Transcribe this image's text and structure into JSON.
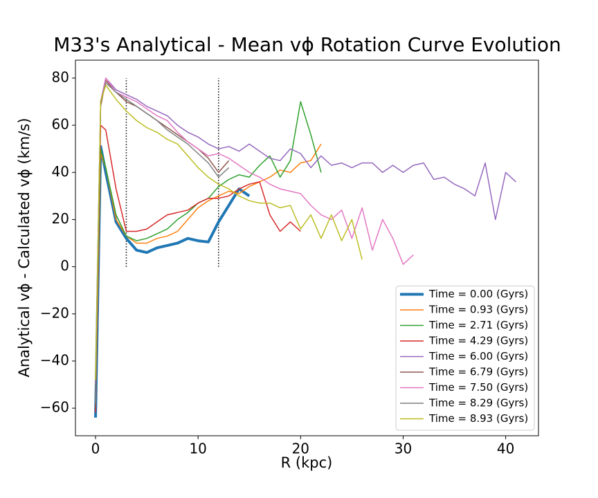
{
  "chart_data": {
    "type": "line",
    "title": "M33's Analytical - Mean vϕ Rotation Curve Evolution",
    "xlabel": "R (kpc)",
    "ylabel": "Analytical vϕ - Calculated vϕ (km/s)",
    "xlim": [
      -1.96,
      43.2
    ],
    "ylim": [
      -71.7,
      87.6
    ],
    "xticks": [
      0,
      10,
      20,
      30,
      40
    ],
    "yticks": [
      {
        "value": -60,
        "label": "−60"
      },
      {
        "value": -40,
        "label": "−40"
      },
      {
        "value": -20,
        "label": "−20"
      },
      0,
      20,
      40,
      60,
      80
    ],
    "legend": "lower right",
    "vlines": [
      {
        "x": 3,
        "ymin": 0,
        "ymax": 80
      },
      {
        "x": 12,
        "ymin": 0,
        "ymax": 80
      }
    ],
    "series": [
      {
        "name": "Time = 0.00 (Gyrs)",
        "color": "#1f77b4",
        "width": 4,
        "x": [
          0,
          0.5,
          1,
          2,
          3,
          4,
          5,
          6,
          7,
          8,
          9,
          10,
          11,
          12,
          13,
          14,
          15
        ],
        "values": [
          -64,
          51,
          40,
          19,
          12,
          7,
          6,
          8,
          9,
          10,
          12,
          11,
          10.5,
          19,
          26,
          33,
          30
        ]
      },
      {
        "name": "Time = 0.93 (Gyrs)",
        "color": "#ff7f0e",
        "width": 1.5,
        "x": [
          0,
          0.5,
          1,
          2,
          3,
          4,
          5,
          6,
          7,
          8,
          9,
          10,
          11,
          12,
          13,
          14,
          15,
          16,
          17,
          18,
          19,
          20,
          21,
          22
        ],
        "values": [
          -60,
          48,
          42,
          20,
          13,
          10,
          10,
          12,
          13,
          15,
          20,
          25,
          28,
          30,
          32,
          31,
          34,
          36,
          38,
          41,
          40,
          44,
          45,
          52
        ]
      },
      {
        "name": "Time = 2.71 (Gyrs)",
        "color": "#2ca02c",
        "width": 1.5,
        "x": [
          0,
          0.5,
          1,
          2,
          3,
          4,
          5,
          6,
          7,
          8,
          9,
          10,
          11,
          12,
          13,
          14,
          15,
          16,
          17,
          18,
          19,
          20,
          21,
          22
        ],
        "values": [
          -52,
          50,
          42,
          22,
          13,
          11,
          12,
          14,
          16,
          20,
          23,
          27,
          29,
          34,
          37,
          39,
          38,
          43,
          47,
          38,
          45,
          70,
          56,
          40
        ]
      },
      {
        "name": "Time = 4.29 (Gyrs)",
        "color": "#d62728",
        "width": 1.5,
        "x": [
          0,
          0.5,
          1,
          2,
          3,
          4,
          5,
          6,
          7,
          8,
          9,
          10,
          11,
          12,
          13,
          14,
          15,
          16,
          17,
          18,
          19,
          20
        ],
        "values": [
          -62,
          60,
          58,
          33,
          15,
          15,
          16,
          19,
          22,
          23,
          24,
          27,
          29,
          29,
          30,
          33,
          35,
          36,
          22,
          15,
          19,
          15
        ]
      },
      {
        "name": "Time = 6.00 (Gyrs)",
        "color": "#9467bd",
        "width": 1.5,
        "x": [
          0,
          0.5,
          1,
          2,
          3,
          4,
          5,
          6,
          7,
          8,
          9,
          10,
          11,
          12,
          13,
          14,
          15,
          16,
          17,
          18,
          19,
          20,
          21,
          22,
          23,
          24,
          25,
          26,
          27,
          28,
          29,
          30,
          31,
          32,
          33,
          34,
          35,
          36,
          37,
          38,
          39,
          40,
          41
        ],
        "values": [
          -55,
          70,
          80,
          75,
          73,
          71,
          68,
          66,
          64,
          60,
          57,
          55,
          52,
          50,
          51,
          49,
          52,
          49,
          46,
          45,
          50,
          48,
          42,
          47,
          43,
          44,
          42,
          44,
          44,
          40,
          43,
          40,
          43,
          44,
          37,
          38,
          35,
          33,
          30,
          44,
          20,
          40,
          36
        ]
      },
      {
        "name": "Time = 6.79 (Gyrs)",
        "color": "#8c564b",
        "width": 1.5,
        "x": [
          0,
          0.5,
          1,
          2,
          3,
          4,
          5,
          6,
          7,
          8,
          9,
          10,
          11,
          12,
          13
        ],
        "values": [
          -60,
          68,
          79,
          74,
          70,
          68,
          65,
          62,
          59,
          56,
          53,
          50,
          46,
          40,
          45
        ]
      },
      {
        "name": "Time = 7.50 (Gyrs)",
        "color": "#e377c2",
        "width": 1.5,
        "x": [
          0,
          0.5,
          1,
          2,
          3,
          4,
          5,
          6,
          7,
          8,
          9,
          10,
          11,
          12,
          13,
          14,
          15,
          16,
          17,
          18,
          19,
          20,
          21,
          22,
          23,
          24,
          25,
          26,
          27,
          28,
          29,
          30,
          31
        ],
        "values": [
          -50,
          70,
          80,
          74,
          72,
          70,
          67,
          64,
          62,
          57,
          53,
          50,
          47,
          48,
          46,
          43,
          40,
          38,
          35,
          33,
          32,
          31,
          26,
          22,
          20,
          24,
          12,
          25,
          7,
          20,
          12,
          1,
          5
        ]
      },
      {
        "name": "Time = 8.29 (Gyrs)",
        "color": "#7f7f7f",
        "width": 1.5,
        "x": [
          0,
          0.5,
          1,
          2,
          3,
          4,
          5,
          6,
          7,
          8,
          9,
          10,
          11,
          12,
          13
        ],
        "values": [
          -58,
          70,
          78,
          74,
          71,
          68,
          65,
          62,
          58,
          55,
          52,
          48,
          44,
          38,
          42
        ]
      },
      {
        "name": "Time = 8.93 (Gyrs)",
        "color": "#bcbd22",
        "width": 1.5,
        "x": [
          0,
          0.5,
          1,
          2,
          3,
          4,
          5,
          6,
          7,
          8,
          9,
          10,
          11,
          12,
          13,
          14,
          15,
          16,
          17,
          18,
          19,
          20,
          21,
          22,
          23,
          24,
          25,
          26
        ],
        "values": [
          -48,
          70,
          77,
          71,
          66,
          62,
          59,
          57,
          54,
          52,
          47,
          42,
          38,
          35,
          33,
          30,
          28,
          27,
          27,
          25,
          26,
          16,
          22,
          12,
          22,
          11,
          20,
          3
        ]
      }
    ]
  }
}
